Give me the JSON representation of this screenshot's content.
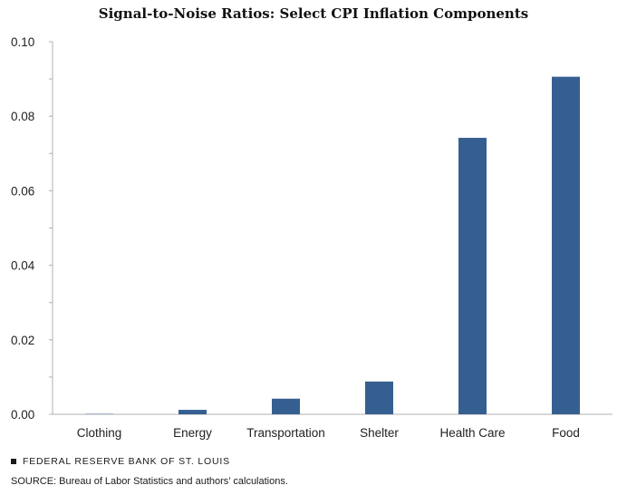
{
  "chart_data": {
    "type": "bar",
    "title": "Signal-to-Noise Ratios: Select CPI Inflation Components",
    "categories": [
      "Clothing",
      "Energy",
      "Transportation",
      "Shelter",
      "Health Care",
      "Food"
    ],
    "values": [
      0.0001,
      0.0012,
      0.0042,
      0.0088,
      0.0742,
      0.0906
    ],
    "ylim": [
      0,
      0.1
    ],
    "yticks": [
      "0.00",
      "0.02",
      "0.04",
      "0.06",
      "0.08",
      "0.10"
    ],
    "xlabel": "",
    "ylabel": "",
    "grid": false,
    "bar_color": "#365f91"
  },
  "footer": {
    "organization": "FEDERAL RESERVE BANK OF ST. LOUIS",
    "source": "SOURCE: Bureau of Labor Statistics and authors’ calculations."
  }
}
